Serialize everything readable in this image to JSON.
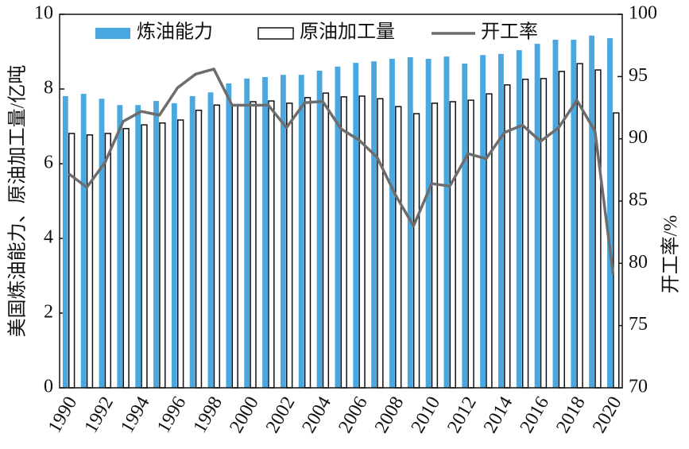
{
  "chart_data": {
    "type": "bar",
    "categories": [
      "1990",
      null,
      "1992",
      null,
      "1994",
      null,
      "1996",
      null,
      "1998",
      null,
      "2000",
      null,
      "2002",
      null,
      "2004",
      null,
      "2006",
      null,
      "2008",
      null,
      "2010",
      null,
      "2012",
      null,
      "2014",
      null,
      "2016",
      null,
      "2018",
      null,
      "2020"
    ],
    "series": [
      {
        "name": "炼油能力",
        "type": "bar",
        "color": "#4aa8e0",
        "values": [
          7.81,
          7.87,
          7.74,
          7.57,
          7.57,
          7.68,
          7.62,
          7.81,
          7.91,
          8.15,
          8.28,
          8.32,
          8.38,
          8.38,
          8.49,
          8.6,
          8.7,
          8.74,
          8.81,
          8.85,
          8.81,
          8.87,
          8.68,
          8.91,
          8.94,
          9.04,
          9.21,
          9.32,
          9.32,
          9.43,
          9.36
        ]
      },
      {
        "name": "原油加工量",
        "type": "bar",
        "color": "#111111",
        "values": [
          6.81,
          6.77,
          6.81,
          6.94,
          7.04,
          7.09,
          7.17,
          7.43,
          7.57,
          7.57,
          7.66,
          7.68,
          7.62,
          7.77,
          7.89,
          7.79,
          7.81,
          7.74,
          7.53,
          7.34,
          7.62,
          7.66,
          7.7,
          7.87,
          8.11,
          8.26,
          8.28,
          8.47,
          8.68,
          8.51,
          7.36
        ]
      },
      {
        "name": "开工率",
        "type": "line",
        "axis": "y2",
        "color": "#6d6d6d",
        "values": [
          87.2,
          86.1,
          88.1,
          91.4,
          92.2,
          91.9,
          94.1,
          95.2,
          95.6,
          92.7,
          92.7,
          92.7,
          90.9,
          92.9,
          93.0,
          90.8,
          89.9,
          88.5,
          85.5,
          83.0,
          86.4,
          86.2,
          88.8,
          88.4,
          90.5,
          91.1,
          89.8,
          90.9,
          93.1,
          90.6,
          79.1
        ]
      }
    ],
    "y_label": "美国炼油能力、原油加工量/亿吨",
    "y2_label": "开工率/%",
    "ylim": [
      0,
      10
    ],
    "yticks": [
      0,
      2,
      4,
      6,
      8,
      10
    ],
    "y2lim": [
      70,
      100
    ],
    "y2ticks": [
      70,
      75,
      80,
      85,
      90,
      95,
      100
    ],
    "legend": "top"
  }
}
